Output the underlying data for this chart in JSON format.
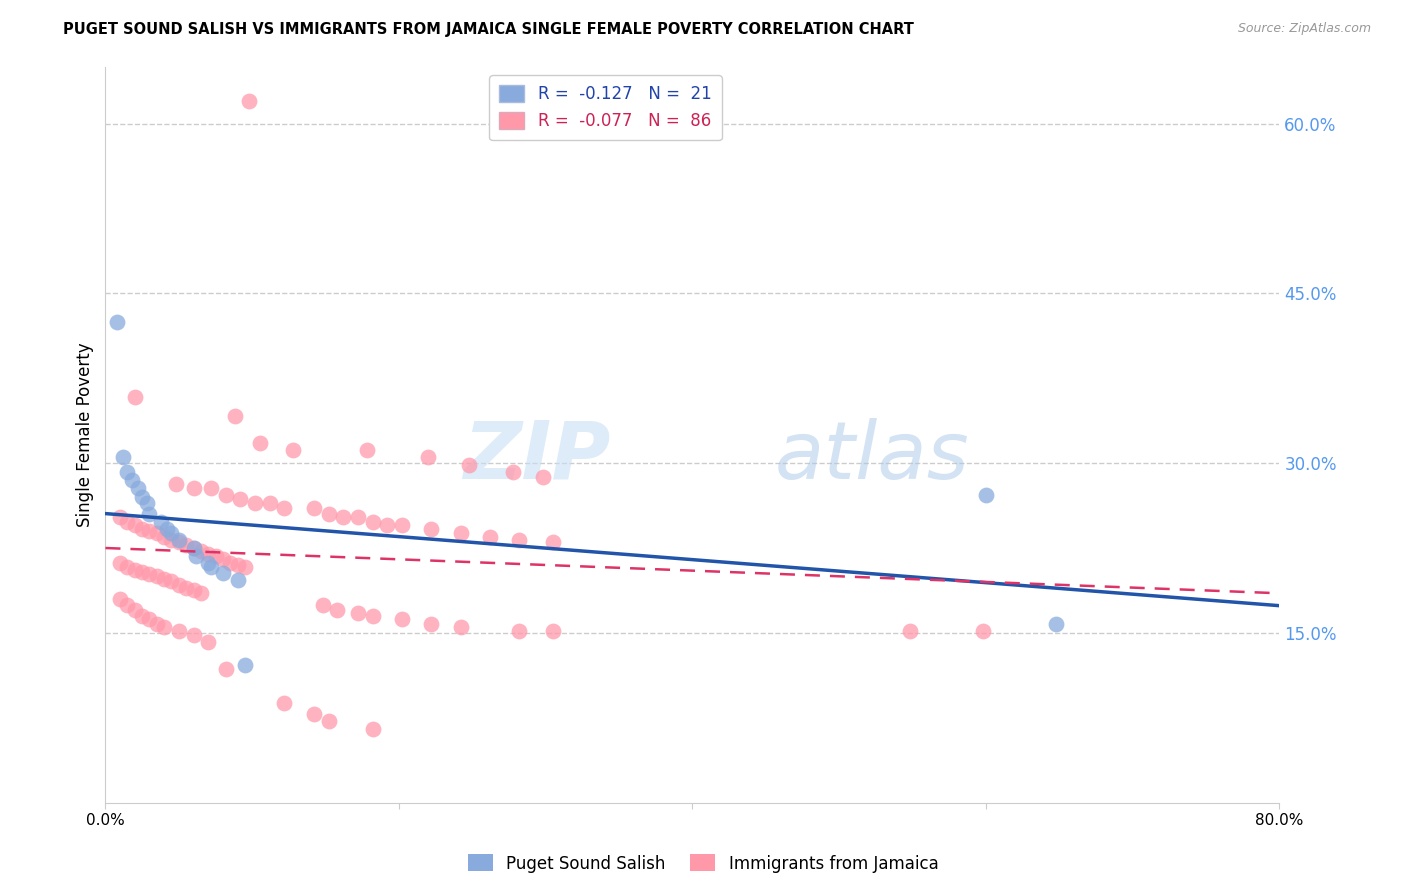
{
  "title": "PUGET SOUND SALISH VS IMMIGRANTS FROM JAMAICA SINGLE FEMALE POVERTY CORRELATION CHART",
  "source": "Source: ZipAtlas.com",
  "ylabel": "Single Female Poverty",
  "x_min": 0.0,
  "x_max": 0.8,
  "y_min": 0.0,
  "y_max": 0.65,
  "y_tick_labels_right": [
    "15.0%",
    "30.0%",
    "45.0%",
    "60.0%"
  ],
  "y_tick_vals_right": [
    0.15,
    0.3,
    0.45,
    0.6
  ],
  "grid_color": "#cccccc",
  "blue_color": "#88aadd",
  "pink_color": "#ff99aa",
  "trendline_blue": "#2255aa",
  "trendline_pink": "#dd3366",
  "blue_R": -0.127,
  "blue_N": 21,
  "pink_R": -0.077,
  "pink_N": 86,
  "blue_points": [
    [
      0.008,
      0.425
    ],
    [
      0.012,
      0.305
    ],
    [
      0.015,
      0.292
    ],
    [
      0.018,
      0.285
    ],
    [
      0.022,
      0.278
    ],
    [
      0.025,
      0.27
    ],
    [
      0.028,
      0.265
    ],
    [
      0.03,
      0.255
    ],
    [
      0.038,
      0.248
    ],
    [
      0.042,
      0.242
    ],
    [
      0.045,
      0.238
    ],
    [
      0.05,
      0.232
    ],
    [
      0.06,
      0.225
    ],
    [
      0.062,
      0.218
    ],
    [
      0.07,
      0.212
    ],
    [
      0.072,
      0.208
    ],
    [
      0.08,
      0.203
    ],
    [
      0.09,
      0.197
    ],
    [
      0.095,
      0.122
    ],
    [
      0.6,
      0.272
    ],
    [
      0.648,
      0.158
    ]
  ],
  "pink_points": [
    [
      0.098,
      0.62
    ],
    [
      0.02,
      0.358
    ],
    [
      0.088,
      0.342
    ],
    [
      0.105,
      0.318
    ],
    [
      0.128,
      0.312
    ],
    [
      0.178,
      0.312
    ],
    [
      0.22,
      0.305
    ],
    [
      0.248,
      0.298
    ],
    [
      0.278,
      0.292
    ],
    [
      0.298,
      0.288
    ],
    [
      0.048,
      0.282
    ],
    [
      0.06,
      0.278
    ],
    [
      0.072,
      0.278
    ],
    [
      0.082,
      0.272
    ],
    [
      0.092,
      0.268
    ],
    [
      0.102,
      0.265
    ],
    [
      0.112,
      0.265
    ],
    [
      0.122,
      0.26
    ],
    [
      0.142,
      0.26
    ],
    [
      0.152,
      0.255
    ],
    [
      0.162,
      0.252
    ],
    [
      0.172,
      0.252
    ],
    [
      0.182,
      0.248
    ],
    [
      0.192,
      0.245
    ],
    [
      0.202,
      0.245
    ],
    [
      0.222,
      0.242
    ],
    [
      0.242,
      0.238
    ],
    [
      0.262,
      0.235
    ],
    [
      0.282,
      0.232
    ],
    [
      0.305,
      0.23
    ],
    [
      0.01,
      0.252
    ],
    [
      0.015,
      0.248
    ],
    [
      0.02,
      0.245
    ],
    [
      0.025,
      0.242
    ],
    [
      0.03,
      0.24
    ],
    [
      0.035,
      0.238
    ],
    [
      0.04,
      0.235
    ],
    [
      0.045,
      0.232
    ],
    [
      0.05,
      0.23
    ],
    [
      0.055,
      0.228
    ],
    [
      0.06,
      0.225
    ],
    [
      0.065,
      0.222
    ],
    [
      0.07,
      0.22
    ],
    [
      0.075,
      0.218
    ],
    [
      0.08,
      0.215
    ],
    [
      0.085,
      0.212
    ],
    [
      0.09,
      0.21
    ],
    [
      0.095,
      0.208
    ],
    [
      0.01,
      0.212
    ],
    [
      0.015,
      0.208
    ],
    [
      0.02,
      0.206
    ],
    [
      0.025,
      0.204
    ],
    [
      0.03,
      0.202
    ],
    [
      0.035,
      0.2
    ],
    [
      0.04,
      0.198
    ],
    [
      0.045,
      0.196
    ],
    [
      0.05,
      0.192
    ],
    [
      0.055,
      0.19
    ],
    [
      0.06,
      0.188
    ],
    [
      0.065,
      0.185
    ],
    [
      0.01,
      0.18
    ],
    [
      0.015,
      0.175
    ],
    [
      0.02,
      0.17
    ],
    [
      0.025,
      0.165
    ],
    [
      0.03,
      0.162
    ],
    [
      0.035,
      0.158
    ],
    [
      0.04,
      0.155
    ],
    [
      0.05,
      0.152
    ],
    [
      0.06,
      0.148
    ],
    [
      0.07,
      0.142
    ],
    [
      0.148,
      0.175
    ],
    [
      0.158,
      0.17
    ],
    [
      0.172,
      0.168
    ],
    [
      0.182,
      0.165
    ],
    [
      0.202,
      0.162
    ],
    [
      0.222,
      0.158
    ],
    [
      0.242,
      0.155
    ],
    [
      0.282,
      0.152
    ],
    [
      0.305,
      0.152
    ],
    [
      0.548,
      0.152
    ],
    [
      0.598,
      0.152
    ],
    [
      0.082,
      0.118
    ],
    [
      0.122,
      0.088
    ],
    [
      0.142,
      0.078
    ],
    [
      0.152,
      0.072
    ],
    [
      0.182,
      0.065
    ]
  ]
}
